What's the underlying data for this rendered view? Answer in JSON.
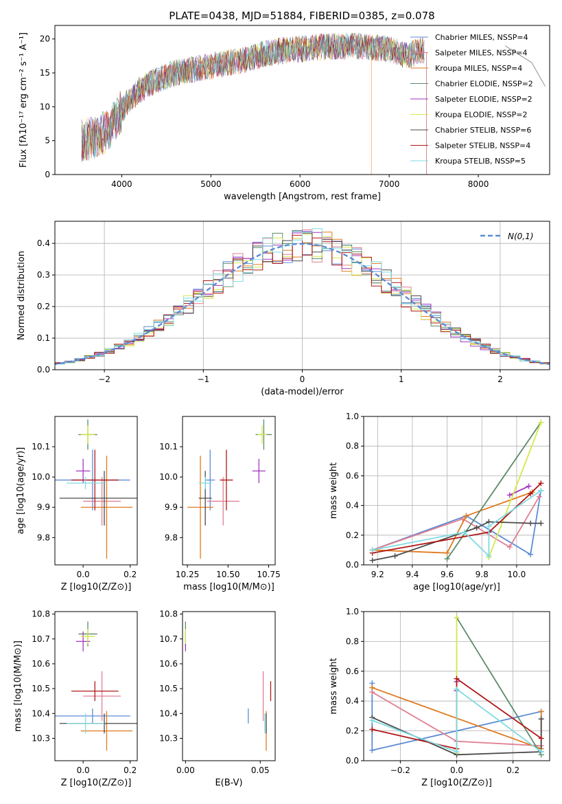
{
  "title": "PLATE=0438, MJD=51884, FIBERID=0385, z=0.078",
  "colors": {
    "chabrier_miles": "#5b8bd5",
    "salpeter_miles": "#e07f91",
    "kroupa_miles": "#e0791e",
    "chabrier_elodie": "#5a8a6a",
    "salpeter_elodie": "#a235c0",
    "kroupa_elodie": "#d4e84a",
    "chabrier_stelib": "#4a4a4a",
    "salpeter_stelib": "#b01818",
    "kroupa_stelib": "#7edbe0",
    "gaussian": "#5b8bd5"
  },
  "chart_data": [
    {
      "panel": "spectrum",
      "type": "line",
      "title": "PLATE=0438, MJD=51884, FIBERID=0385, z=0.078",
      "xlabel": "wavelength [Angstrom, rest frame]",
      "ylabel": "Flux [fλ10⁻¹⁷ erg cm⁻² s⁻¹ A⁻¹]",
      "xlim": [
        3250,
        8800
      ],
      "ylim": [
        0,
        22
      ],
      "xticks": [
        "4000",
        "5000",
        "6000",
        "7000",
        "8000"
      ],
      "yticks": [
        "0",
        "5",
        "10",
        "15",
        "20"
      ],
      "legend_position": "right",
      "legend": [
        "Chabrier MILES, NSSP=4",
        "Salpeter MILES, NSSP=4",
        "Kroupa MILES, NSSP=4",
        "Chabrier ELODIE, NSSP=2",
        "Salpeter ELODIE, NSSP=2",
        "Kroupa ELODIE, NSSP=2",
        "Chabrier STELIB, NSSP=6",
        "Salpeter STELIB, NSSP=4",
        "Kroupa STELIB, NSSP=5"
      ],
      "continuum": {
        "x": [
          3550,
          3700,
          3850,
          3950,
          4050,
          4200,
          4400,
          4600,
          4800,
          5000,
          5200,
          5400,
          5600,
          5800,
          6000,
          6200,
          6400,
          6600,
          6800,
          7000,
          7200,
          7400
        ],
        "y": [
          5.0,
          5.5,
          6.5,
          8.5,
          10.5,
          12.5,
          14.0,
          15.0,
          15.5,
          16.0,
          16.5,
          17.0,
          17.8,
          18.3,
          18.5,
          18.8,
          18.9,
          19.0,
          18.8,
          18.5,
          17.5,
          18.5
        ]
      }
    },
    {
      "panel": "residuals",
      "type": "histogram",
      "xlabel": "(data-model)/error",
      "ylabel": "Normed distribution",
      "xlim": [
        -2.5,
        2.5
      ],
      "ylim": [
        0,
        0.47
      ],
      "xticks": [
        "−2",
        "−1",
        "0",
        "1",
        "2"
      ],
      "yticks": [
        "0.0",
        "0.1",
        "0.2",
        "0.3",
        "0.4"
      ],
      "grid": true,
      "legend_position": "top-right",
      "legend": [
        "N(0,1)"
      ],
      "bin_width": 0.1
    },
    {
      "panel": "age_vs_Z",
      "type": "scatter",
      "xlabel": "Z [log10(Z/Z⊙)]",
      "ylabel": "age [log10(age/yr)]",
      "xlim": [
        -0.12,
        0.23
      ],
      "ylim": [
        9.71,
        10.2
      ],
      "xticks": [
        "0.0",
        "0.2"
      ],
      "yticks": [
        "9.8",
        "9.9",
        "10.0",
        "10.1"
      ],
      "points": [
        {
          "model": "chabrier_miles",
          "x": 0.04,
          "y": 9.99,
          "xerr": 0.16,
          "yerr": 0.1
        },
        {
          "model": "salpeter_miles",
          "x": 0.08,
          "y": 9.92,
          "xerr": 0.08,
          "yerr": 0.08
        },
        {
          "model": "kroupa_miles",
          "x": 0.1,
          "y": 9.9,
          "xerr": 0.11,
          "yerr": 0.17
        },
        {
          "model": "chabrier_elodie",
          "x": 0.02,
          "y": 10.14,
          "xerr": 0.04,
          "yerr": 0.05
        },
        {
          "model": "salpeter_elodie",
          "x": 0.0,
          "y": 10.02,
          "xerr": 0.03,
          "yerr": 0.04
        },
        {
          "model": "kroupa_elodie",
          "x": 0.02,
          "y": 10.14,
          "xerr": 0.03,
          "yerr": 0.03
        },
        {
          "model": "chabrier_stelib",
          "x": 0.09,
          "y": 9.93,
          "xerr": 0.19,
          "yerr": 0.09
        },
        {
          "model": "salpeter_stelib",
          "x": 0.05,
          "y": 9.99,
          "xerr": 0.1,
          "yerr": 0.1
        },
        {
          "model": "kroupa_stelib",
          "x": 0.01,
          "y": 9.98,
          "xerr": 0.08,
          "yerr": 0.02
        }
      ]
    },
    {
      "panel": "age_vs_mass",
      "type": "scatter",
      "xlabel": "mass [log10(M/M⊙)]",
      "xlim": [
        10.22,
        10.79
      ],
      "ylim": [
        9.71,
        10.2
      ],
      "xticks": [
        "10.25",
        "10.50",
        "10.75"
      ],
      "yticks": [
        "9.8",
        "9.9",
        "10.0",
        "10.1"
      ],
      "points": [
        {
          "model": "chabrier_miles",
          "x": 10.39,
          "y": 9.99,
          "xerr": 0.03,
          "yerr": 0.1
        },
        {
          "model": "salpeter_miles",
          "x": 10.47,
          "y": 9.92,
          "xerr": 0.1,
          "yerr": 0.08
        },
        {
          "model": "kroupa_miles",
          "x": 10.33,
          "y": 9.9,
          "xerr": 0.08,
          "yerr": 0.17
        },
        {
          "model": "chabrier_elodie",
          "x": 10.72,
          "y": 10.14,
          "xerr": 0.05,
          "yerr": 0.05
        },
        {
          "model": "salpeter_elodie",
          "x": 10.69,
          "y": 10.02,
          "xerr": 0.04,
          "yerr": 0.04
        },
        {
          "model": "kroupa_elodie",
          "x": 10.71,
          "y": 10.14,
          "xerr": 0.03,
          "yerr": 0.03
        },
        {
          "model": "chabrier_stelib",
          "x": 10.36,
          "y": 9.93,
          "xerr": 0.04,
          "yerr": 0.09
        },
        {
          "model": "salpeter_stelib",
          "x": 10.49,
          "y": 9.99,
          "xerr": 0.04,
          "yerr": 0.1
        },
        {
          "model": "kroupa_stelib",
          "x": 10.36,
          "y": 9.98,
          "xerr": 0.04,
          "yerr": 0.02
        }
      ]
    },
    {
      "panel": "mass_weight_vs_age",
      "type": "line",
      "xlabel": "age [log10(age/yr)]",
      "ylabel": "mass weight",
      "xlim": [
        9.12,
        10.19
      ],
      "ylim": [
        0,
        1
      ],
      "xticks": [
        "9.2",
        "9.4",
        "9.6",
        "9.8",
        "10.0"
      ],
      "yticks": [
        "0.0",
        "0.2",
        "0.4",
        "0.6",
        "0.8",
        "1.0"
      ],
      "grid": true,
      "series": [
        {
          "model": "chabrier_miles",
          "x": [
            9.17,
            9.71,
            10.08,
            10.14
          ],
          "y": [
            0.1,
            0.33,
            0.07,
            0.5
          ]
        },
        {
          "model": "salpeter_miles",
          "x": [
            9.17,
            9.69,
            9.96,
            10.13
          ],
          "y": [
            0.1,
            0.31,
            0.12,
            0.46
          ]
        },
        {
          "model": "kroupa_miles",
          "x": [
            9.17,
            9.6,
            9.71,
            10.09
          ],
          "y": [
            0.1,
            0.08,
            0.33,
            0.49
          ]
        },
        {
          "model": "chabrier_elodie",
          "x": [
            9.6,
            10.14
          ],
          "y": [
            0.04,
            0.96
          ]
        },
        {
          "model": "salpeter_elodie",
          "x": [
            9.96,
            10.07
          ],
          "y": [
            0.47,
            0.53
          ]
        },
        {
          "model": "kroupa_elodie",
          "x": [
            9.84,
            10.14
          ],
          "y": [
            0.05,
            0.96
          ]
        },
        {
          "model": "chabrier_stelib",
          "x": [
            9.17,
            9.3,
            9.77,
            9.84,
            10.08,
            10.14
          ],
          "y": [
            0.03,
            0.06,
            0.25,
            0.29,
            0.28,
            0.28
          ]
        },
        {
          "model": "salpeter_stelib",
          "x": [
            9.17,
            9.84,
            10.08,
            10.14
          ],
          "y": [
            0.08,
            0.22,
            0.48,
            0.55
          ]
        },
        {
          "model": "kroupa_stelib",
          "x": [
            9.17,
            9.7,
            9.84,
            9.84,
            10.14
          ],
          "y": [
            0.1,
            0.22,
            0.06,
            0.26,
            0.5
          ]
        }
      ]
    },
    {
      "panel": "mass_vs_Z",
      "type": "scatter",
      "xlabel": "Z [log10(Z/Z⊙)]",
      "ylabel": "mass [log10(M/M⊙)]",
      "xlim": [
        -0.12,
        0.23
      ],
      "ylim": [
        10.21,
        10.81
      ],
      "xticks": [
        "0.0",
        "0.2"
      ],
      "yticks": [
        "10.3",
        "10.4",
        "10.5",
        "10.6",
        "10.7",
        "10.8"
      ],
      "points": [
        {
          "model": "chabrier_miles",
          "x": 0.04,
          "y": 10.39,
          "xerr": 0.16,
          "yerr": 0.03
        },
        {
          "model": "salpeter_miles",
          "x": 0.08,
          "y": 10.47,
          "xerr": 0.08,
          "yerr": 0.1
        },
        {
          "model": "kroupa_miles",
          "x": 0.1,
          "y": 10.33,
          "xerr": 0.11,
          "yerr": 0.08
        },
        {
          "model": "chabrier_elodie",
          "x": 0.02,
          "y": 10.72,
          "xerr": 0.04,
          "yerr": 0.05
        },
        {
          "model": "salpeter_elodie",
          "x": 0.0,
          "y": 10.69,
          "xerr": 0.03,
          "yerr": 0.04
        },
        {
          "model": "kroupa_elodie",
          "x": 0.02,
          "y": 10.71,
          "xerr": 0.03,
          "yerr": 0.03
        },
        {
          "model": "chabrier_stelib",
          "x": 0.09,
          "y": 10.36,
          "xerr": 0.19,
          "yerr": 0.04
        },
        {
          "model": "salpeter_stelib",
          "x": 0.05,
          "y": 10.49,
          "xerr": 0.1,
          "yerr": 0.04
        },
        {
          "model": "kroupa_stelib",
          "x": 0.01,
          "y": 10.36,
          "xerr": 0.08,
          "yerr": 0.04
        }
      ]
    },
    {
      "panel": "mass_vs_ebv",
      "type": "scatter",
      "xlabel": "E(B-V)",
      "xlim": [
        -0.002,
        0.06
      ],
      "ylim": [
        10.21,
        10.81
      ],
      "xticks": [
        "0.00",
        "0.05"
      ],
      "yticks": [
        "10.3",
        "10.4",
        "10.5",
        "10.6",
        "10.7",
        "10.8"
      ],
      "points": [
        {
          "model": "chabrier_miles",
          "x": 0.042,
          "y": 10.39,
          "yerr": 0.03
        },
        {
          "model": "salpeter_miles",
          "x": 0.052,
          "y": 10.47,
          "yerr": 0.1
        },
        {
          "model": "kroupa_miles",
          "x": 0.054,
          "y": 10.33,
          "yerr": 0.08
        },
        {
          "model": "chabrier_elodie",
          "x": 0.0,
          "y": 10.72,
          "yerr": 0.05
        },
        {
          "model": "salpeter_elodie",
          "x": 0.0,
          "y": 10.69,
          "yerr": 0.04
        },
        {
          "model": "kroupa_elodie",
          "x": 0.0,
          "y": 10.71,
          "yerr": 0.03
        },
        {
          "model": "chabrier_stelib",
          "x": 0.054,
          "y": 10.36,
          "yerr": 0.04
        },
        {
          "model": "salpeter_stelib",
          "x": 0.057,
          "y": 10.49,
          "yerr": 0.04
        },
        {
          "model": "kroupa_stelib",
          "x": 0.053,
          "y": 10.36,
          "yerr": 0.04
        }
      ]
    },
    {
      "panel": "mass_weight_vs_Z",
      "type": "line",
      "xlabel": "Z [log10(Z/Z⊙)]",
      "ylabel": "mass weight",
      "xlim": [
        -0.33,
        0.33
      ],
      "ylim": [
        0,
        1
      ],
      "xticks": [
        "−0.2",
        "0.0",
        "0.2"
      ],
      "yticks": [
        "0.0",
        "0.2",
        "0.4",
        "0.6",
        "0.8",
        "1.0"
      ],
      "grid": true,
      "series": [
        {
          "model": "chabrier_miles",
          "x": [
            -0.3,
            -0.3,
            0.3
          ],
          "y": [
            0.52,
            0.07,
            0.33
          ]
        },
        {
          "model": "salpeter_miles",
          "x": [
            -0.3,
            0.0,
            0.3
          ],
          "y": [
            0.46,
            0.13,
            0.1
          ]
        },
        {
          "model": "kroupa_miles",
          "x": [
            -0.3,
            0.3,
            0.3
          ],
          "y": [
            0.49,
            0.08,
            0.33
          ]
        },
        {
          "model": "chabrier_elodie",
          "x": [
            0.0,
            0.3
          ],
          "y": [
            0.96,
            0.04
          ]
        },
        {
          "model": "salpeter_elodie",
          "x": [
            0.0,
            0.0
          ],
          "y": [
            0.47,
            0.53
          ]
        },
        {
          "model": "kroupa_elodie",
          "x": [
            0.0,
            0.0
          ],
          "y": [
            0.96,
            0.05
          ]
        },
        {
          "model": "chabrier_stelib",
          "x": [
            -0.3,
            0.0,
            0.3,
            0.3
          ],
          "y": [
            0.29,
            0.04,
            0.06,
            0.28
          ]
        },
        {
          "model": "salpeter_stelib",
          "x": [
            -0.3,
            0.0,
            0.0,
            0.3
          ],
          "y": [
            0.21,
            0.08,
            0.55,
            0.15
          ]
        },
        {
          "model": "kroupa_stelib",
          "x": [
            -0.3,
            0.0,
            0.0,
            0.3
          ],
          "y": [
            0.27,
            0.06,
            0.48,
            0.06
          ]
        }
      ]
    }
  ]
}
